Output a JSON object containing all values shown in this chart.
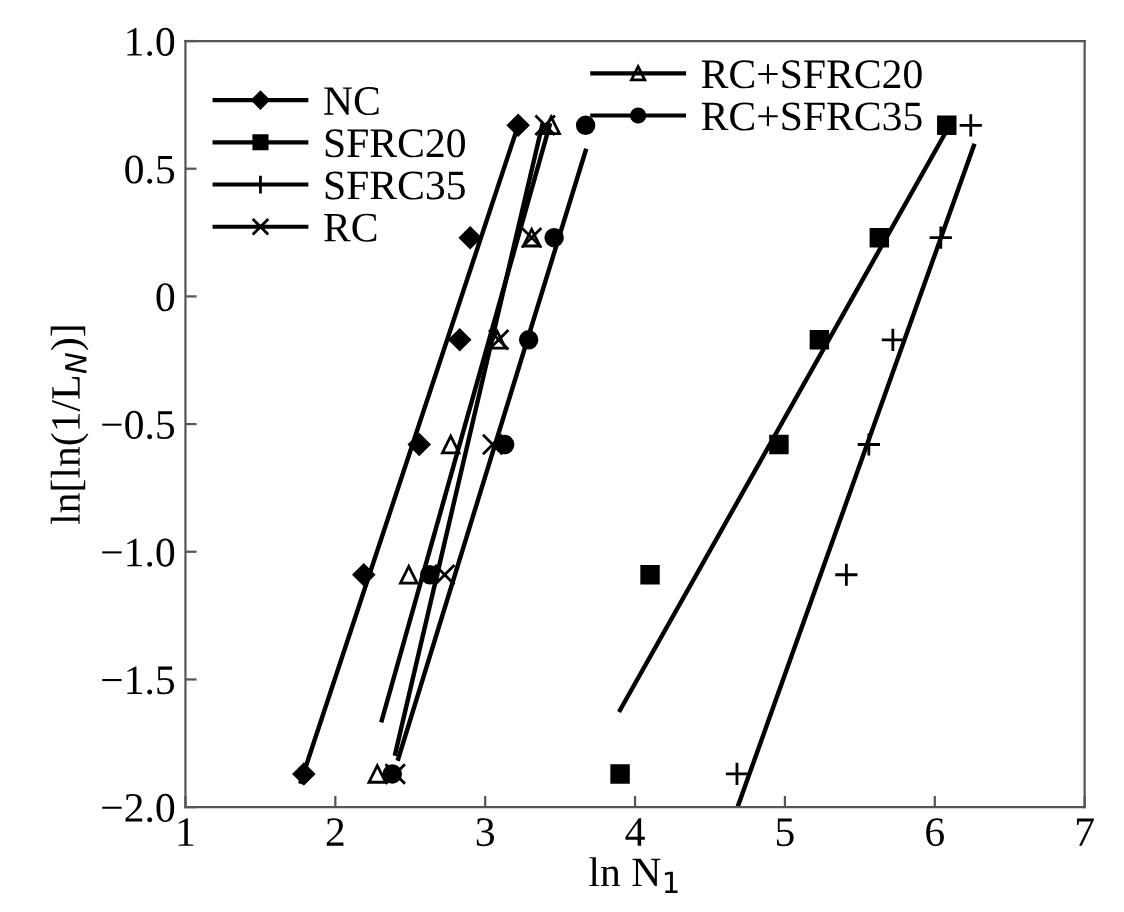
{
  "chart_data": {
    "type": "scatter",
    "xlabel": "ln N$_{1}$",
    "ylabel": "ln[ln(1/L$_{N}$)]",
    "xlim": [
      1,
      7
    ],
    "xticks": [
      1,
      2,
      3,
      4,
      5,
      6,
      7
    ],
    "ylim": [
      -2.0,
      1.0
    ],
    "yticks": [
      {
        "value": -2.0,
        "label": "−2.0"
      },
      {
        "value": -1.5,
        "label": "−1.5"
      },
      {
        "value": -1.0,
        "label": "−1.0"
      },
      {
        "value": -0.5,
        "label": "−0.5"
      },
      0,
      0.5,
      {
        "value": 1.0,
        "label": "1.0"
      }
    ],
    "grid": false,
    "legend": "top left",
    "series": [
      {
        "name": "NC",
        "color": "#000000",
        "marker": "diamond",
        "x": [
          1.79,
          2.19,
          2.56,
          2.83,
          2.9,
          3.22
        ],
        "values": [
          -1.87,
          -1.09,
          -0.58,
          -0.17,
          0.23,
          0.67
        ]
      },
      {
        "name": "SFRC20",
        "color": "#000000",
        "marker": "square",
        "x": [
          3.9,
          4.1,
          4.96,
          5.23,
          5.63,
          6.08
        ],
        "values": [
          -1.87,
          -1.09,
          -0.58,
          -0.17,
          0.23,
          0.67
        ]
      },
      {
        "name": "SFRC35",
        "color": "#000000",
        "marker": "cross",
        "x": [
          4.68,
          5.41,
          5.56,
          5.72,
          6.04,
          6.24
        ],
        "values": [
          -1.87,
          -1.09,
          -0.58,
          -0.17,
          0.23,
          0.67
        ]
      },
      {
        "name": "RC",
        "color": "#000000",
        "marker": "x",
        "x": [
          2.4,
          2.73,
          3.05,
          3.09,
          3.31,
          3.4
        ],
        "values": [
          -1.87,
          -1.09,
          -0.58,
          -0.17,
          0.23,
          0.67
        ]
      },
      {
        "name": "RC+SFRC20",
        "color": "#000000",
        "marker": "triangle",
        "x": [
          2.28,
          2.49,
          2.77,
          3.08,
          3.31,
          3.44
        ],
        "values": [
          -1.87,
          -1.09,
          -0.58,
          -0.17,
          0.23,
          0.67
        ]
      },
      {
        "name": "RC+SFRC35",
        "color": "#000000",
        "marker": "circle",
        "x": [
          2.38,
          2.63,
          3.13,
          3.29,
          3.46,
          3.67
        ],
        "values": [
          -1.87,
          -1.09,
          -0.58,
          -0.17,
          0.23,
          0.67
        ]
      },
      {
        "type": "line",
        "color": "#000000",
        "x": [
          1.77,
          3.22
        ],
        "values": [
          -1.9,
          0.67
        ]
      },
      {
        "type": "line",
        "color": "#000000",
        "x": [
          3.9,
          6.08
        ],
        "values": [
          -1.62,
          0.65
        ]
      },
      {
        "type": "line",
        "color": "#000000",
        "x": [
          4.69,
          6.26
        ],
        "values": [
          -1.99,
          0.59
        ]
      },
      {
        "type": "line",
        "color": "#000000",
        "x": [
          2.4,
          3.38
        ],
        "values": [
          -1.79,
          0.67
        ]
      },
      {
        "type": "line",
        "color": "#000000",
        "x": [
          2.31,
          3.43
        ],
        "values": [
          -1.66,
          0.67
        ]
      },
      {
        "type": "line",
        "color": "#000000",
        "x": [
          2.42,
          3.67
        ],
        "values": [
          -1.81,
          0.57
        ]
      }
    ]
  }
}
